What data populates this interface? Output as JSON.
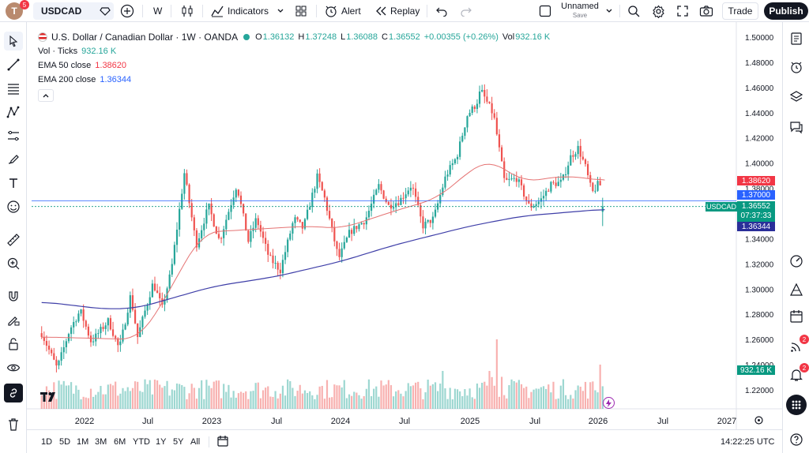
{
  "toolbar": {
    "avatar_letter": "T",
    "avatar_badge": "5",
    "symbol": "USDCAD",
    "interval": "W",
    "indicators_label": "Indicators",
    "alert_label": "Alert",
    "replay_label": "Replay",
    "layout_name": "Unnamed",
    "layout_status": "Save",
    "trade_label": "Trade",
    "publish_label": "Publish"
  },
  "legend": {
    "title": "U.S. Dollar / Canadian Dollar · 1W · OANDA",
    "ohlc": {
      "o_label": "O",
      "o": "1.36132",
      "h_label": "H",
      "h": "1.37248",
      "l_label": "L",
      "l": "1.36088",
      "c_label": "C",
      "c": "1.36552",
      "change": "+0.00355 (+0.26%)",
      "vol_label": "Vol",
      "vol": "932.16 K"
    },
    "vol_name": "Vol · Ticks",
    "vol_value": "932.16 K",
    "ema50_name": "EMA 50 close",
    "ema50_value": "1.38620",
    "ema200_name": "EMA 200 close",
    "ema200_value": "1.36344"
  },
  "price_axis": {
    "ticks": [
      "1.50000",
      "1.48000",
      "1.46000",
      "1.44000",
      "1.42000",
      "1.40000",
      "1.38000",
      "1.36000",
      "1.34000",
      "1.32000",
      "1.30000",
      "1.28000",
      "1.26000",
      "1.24000",
      "1.22000"
    ],
    "tags": {
      "ema50": "1.38620",
      "level": "1.37000",
      "symbol": "USDCAD",
      "last": "1.36552",
      "countdown": "07:37:33",
      "ema200": "1.36344",
      "volume": "932.16 K"
    }
  },
  "time_axis": {
    "labels": [
      "2022",
      "Jul",
      "2023",
      "Jul",
      "2024",
      "Jul",
      "2025",
      "Jul",
      "2026",
      "Jul",
      "2027"
    ]
  },
  "bottom": {
    "ranges": [
      "1D",
      "5D",
      "1M",
      "3M",
      "6M",
      "YTD",
      "1Y",
      "5Y",
      "All"
    ],
    "clock": "14:22:25 UTC"
  },
  "right_notifications": {
    "hotlist": "2",
    "alerts": "2"
  },
  "colors": {
    "up": "#26a69a",
    "down": "#ef5350",
    "ema50": "#e57373",
    "ema200": "#3f3fa8",
    "accent": "#2962ff"
  },
  "chart_data": {
    "type": "candlestick",
    "symbol": "USDCAD",
    "interval": "1W",
    "ylim": [
      1.21,
      1.505
    ],
    "anchors": [
      [
        "2021-09-01",
        1.265
      ],
      [
        "2021-10-15",
        1.237
      ],
      [
        "2021-11-20",
        1.268
      ],
      [
        "2021-12-20",
        1.283
      ],
      [
        "2022-01-20",
        1.258
      ],
      [
        "2022-03-10",
        1.275
      ],
      [
        "2022-04-10",
        1.252
      ],
      [
        "2022-05-12",
        1.295
      ],
      [
        "2022-06-01",
        1.262
      ],
      [
        "2022-07-15",
        1.305
      ],
      [
        "2022-08-10",
        1.285
      ],
      [
        "2022-09-05",
        1.315
      ],
      [
        "2022-10-12",
        1.392
      ],
      [
        "2022-11-15",
        1.335
      ],
      [
        "2022-12-20",
        1.366
      ],
      [
        "2023-01-20",
        1.338
      ],
      [
        "2023-03-10",
        1.383
      ],
      [
        "2023-04-12",
        1.338
      ],
      [
        "2023-05-05",
        1.356
      ],
      [
        "2023-06-10",
        1.325
      ],
      [
        "2023-07-12",
        1.315
      ],
      [
        "2023-08-20",
        1.356
      ],
      [
        "2023-09-15",
        1.348
      ],
      [
        "2023-10-25",
        1.389
      ],
      [
        "2023-11-15",
        1.372
      ],
      [
        "2023-12-25",
        1.324
      ],
      [
        "2024-01-25",
        1.345
      ],
      [
        "2024-03-10",
        1.355
      ],
      [
        "2024-04-17",
        1.382
      ],
      [
        "2024-05-15",
        1.366
      ],
      [
        "2024-06-15",
        1.37
      ],
      [
        "2024-07-20",
        1.383
      ],
      [
        "2024-08-20",
        1.35
      ],
      [
        "2024-09-20",
        1.356
      ],
      [
        "2024-10-25",
        1.39
      ],
      [
        "2024-11-25",
        1.405
      ],
      [
        "2024-12-25",
        1.438
      ],
      [
        "2025-01-20",
        1.447
      ],
      [
        "2025-02-01",
        1.458
      ],
      [
        "2025-03-10",
        1.438
      ],
      [
        "2025-04-10",
        1.385
      ],
      [
        "2025-05-15",
        1.388
      ],
      [
        "2025-06-20",
        1.365
      ],
      [
        "2025-07-20",
        1.37
      ],
      [
        "2025-08-20",
        1.383
      ],
      [
        "2025-09-20",
        1.385
      ],
      [
        "2025-10-15",
        1.405
      ],
      [
        "2025-11-05",
        1.412
      ],
      [
        "2025-11-25",
        1.398
      ],
      [
        "2025-12-15",
        1.376
      ],
      [
        "2026-01-05",
        1.385
      ],
      [
        "2026-01-20",
        1.3655
      ]
    ],
    "ema50": [
      [
        "2021-09-01",
        1.262
      ],
      [
        "2022-06-01",
        1.26
      ],
      [
        "2022-07-15",
        1.276
      ],
      [
        "2022-12-01",
        1.345
      ],
      [
        "2023-06-01",
        1.348
      ],
      [
        "2023-10-01",
        1.35
      ],
      [
        "2024-01-01",
        1.348
      ],
      [
        "2024-06-01",
        1.362
      ],
      [
        "2024-10-01",
        1.372
      ],
      [
        "2025-01-15",
        1.397
      ],
      [
        "2025-03-01",
        1.403
      ],
      [
        "2025-06-01",
        1.385
      ],
      [
        "2025-10-01",
        1.39
      ],
      [
        "2026-01-20",
        1.386
      ]
    ],
    "ema200": [
      [
        "2021-09-01",
        1.29
      ],
      [
        "2022-03-01",
        1.284
      ],
      [
        "2022-06-01",
        1.285
      ],
      [
        "2023-01-01",
        1.302
      ],
      [
        "2023-07-01",
        1.31
      ],
      [
        "2024-01-01",
        1.322
      ],
      [
        "2024-06-01",
        1.335
      ],
      [
        "2025-01-01",
        1.35
      ],
      [
        "2025-06-01",
        1.358
      ],
      [
        "2026-01-20",
        1.3634
      ]
    ],
    "volume_last": "932.16 K"
  }
}
